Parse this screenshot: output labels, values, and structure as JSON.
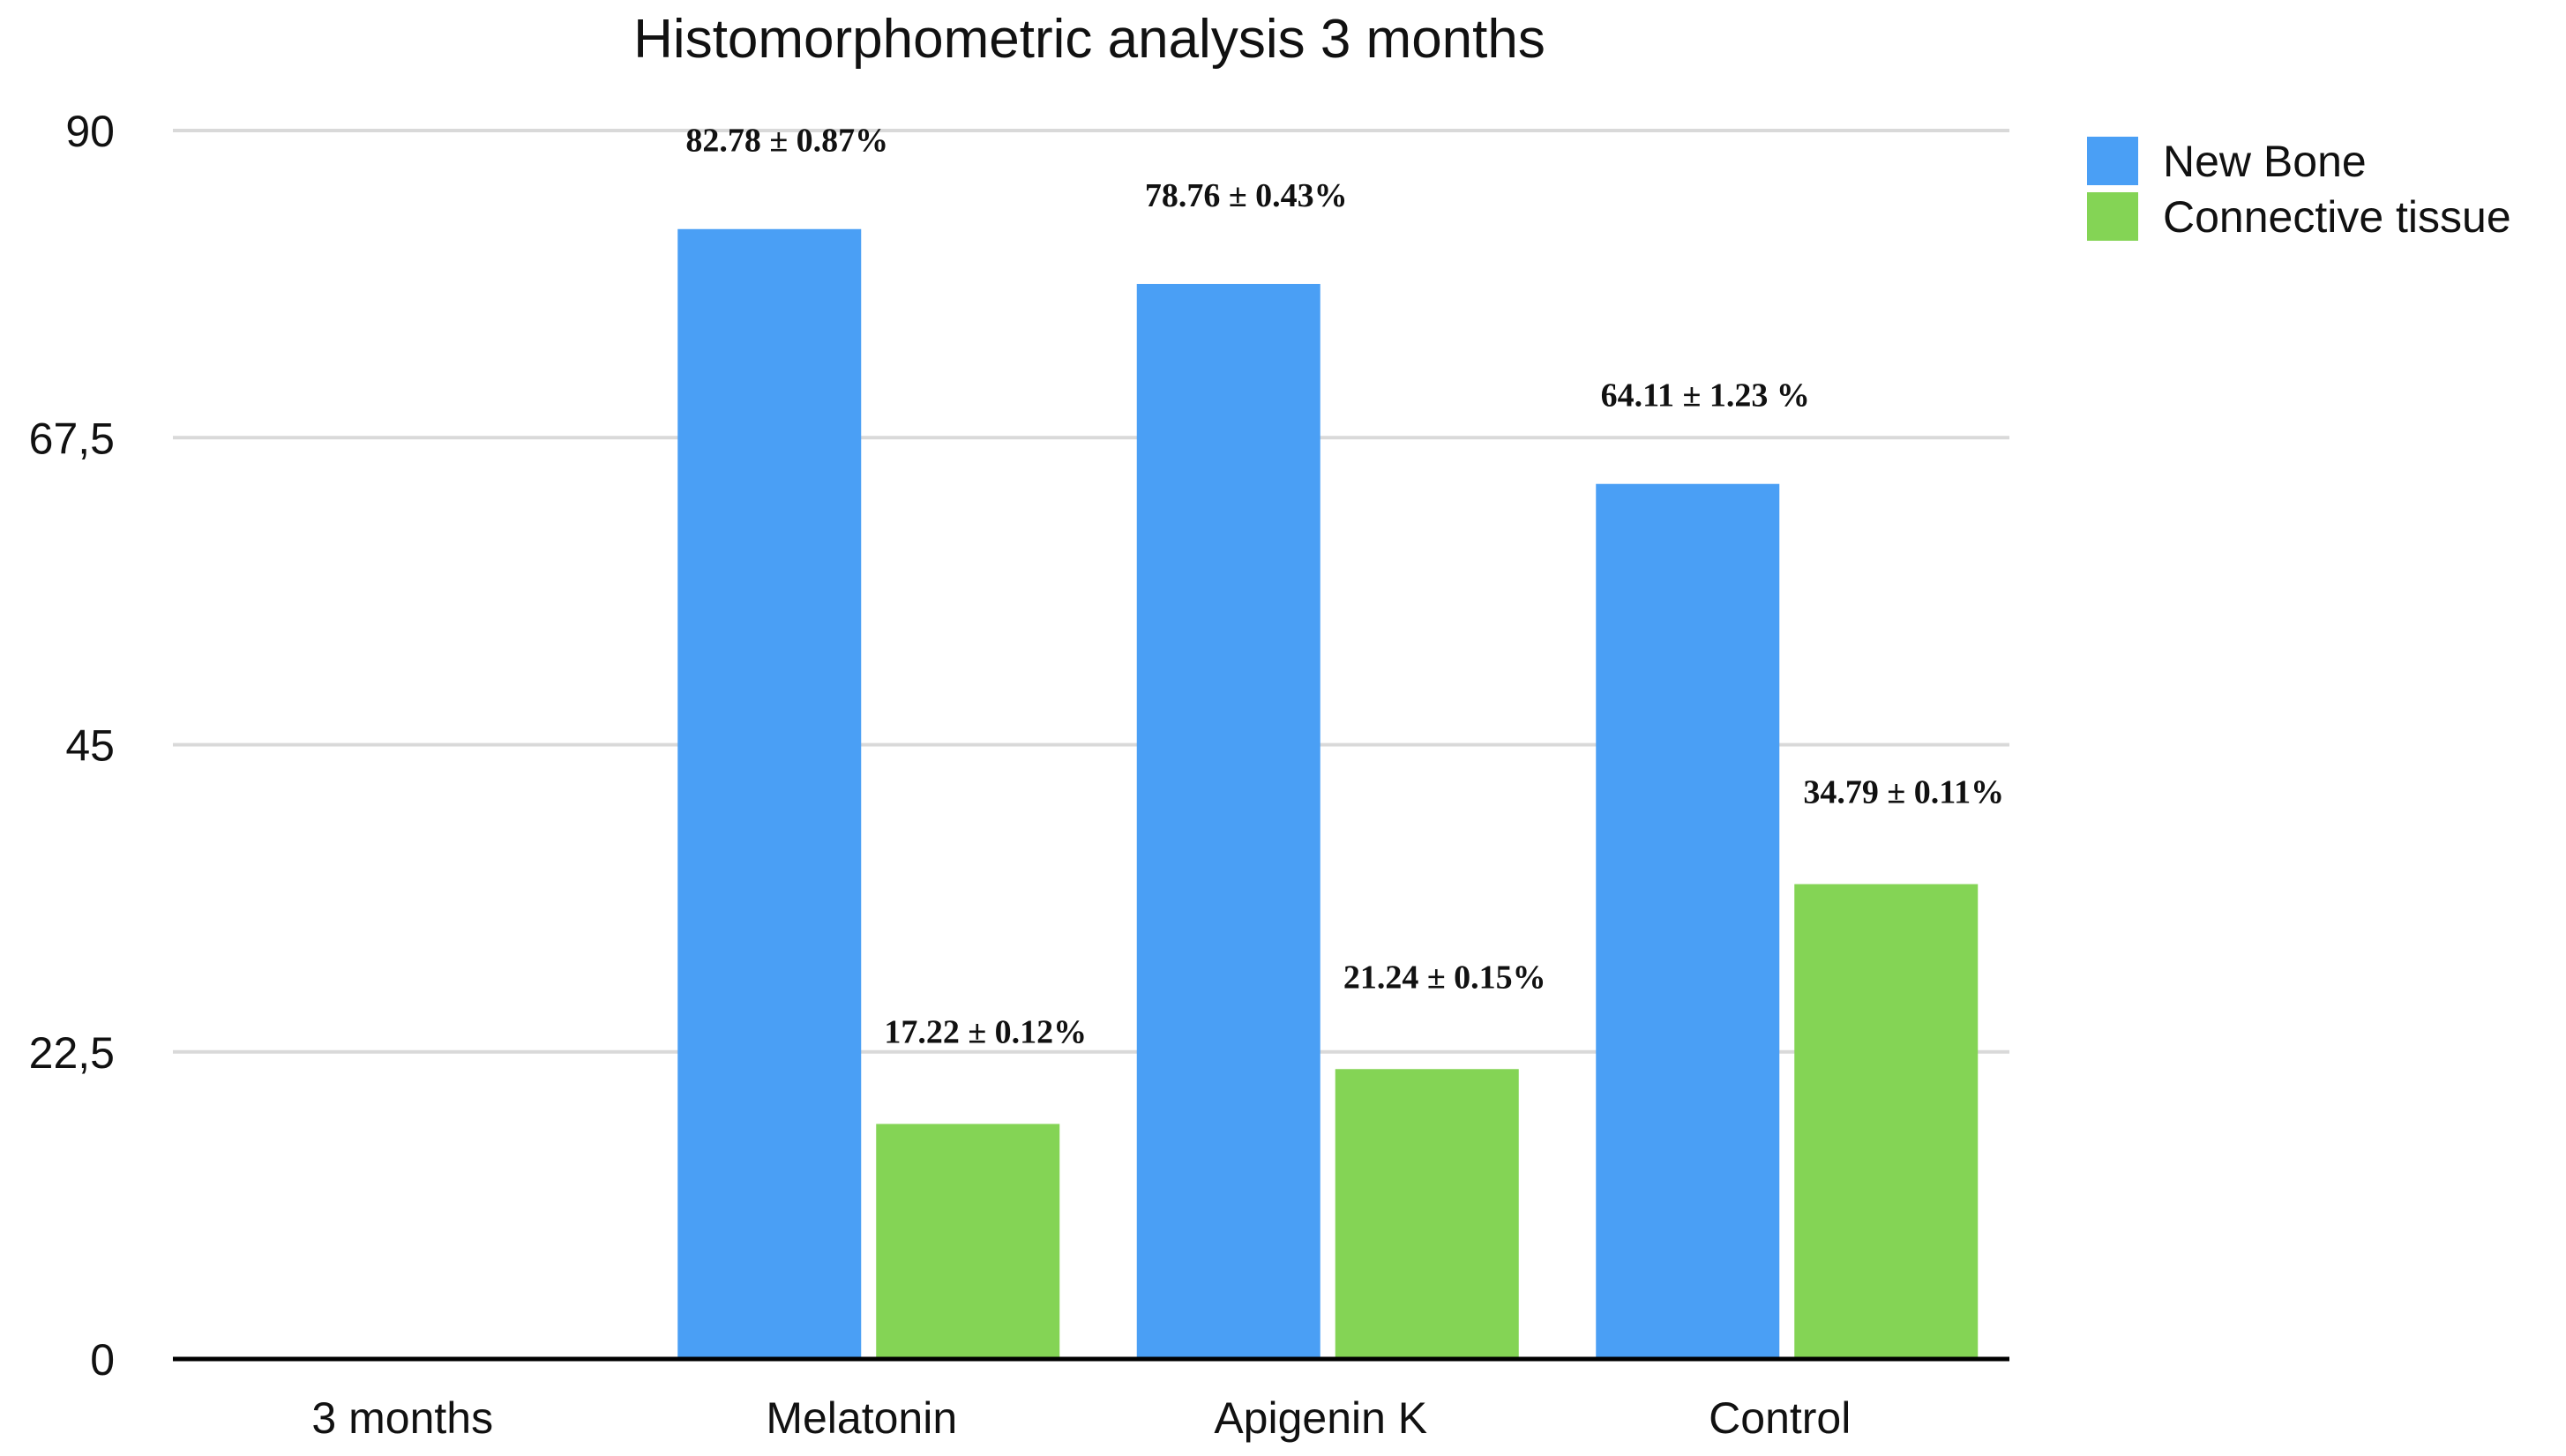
{
  "chart_data": {
    "type": "bar",
    "title": "Histomorphometric analysis 3 months",
    "xlabel": "",
    "ylabel": "",
    "ylim": [
      0,
      90
    ],
    "yticks": [
      0,
      22.5,
      45,
      67.5,
      90
    ],
    "ytick_labels": [
      "0",
      "22,5",
      "45",
      "67,5",
      "90"
    ],
    "grid": true,
    "legend_position": "top-right",
    "categories": [
      "3 months",
      "Melatonin",
      "Apigenin K",
      "Control"
    ],
    "series": [
      {
        "name": "New Bone",
        "color": "#4a9ff5",
        "values": [
          null,
          82.78,
          78.76,
          64.11
        ],
        "labels": [
          "",
          "82.78 ± 0.87%",
          "78.76 ± 0.43%",
          "64.11 ± 1.23 %"
        ]
      },
      {
        "name": "Connective tissue",
        "color": "#84d455",
        "values": [
          null,
          17.22,
          21.24,
          34.79
        ],
        "labels": [
          "",
          "17.22 ± 0.12%",
          "21.24 ± 0.15%",
          "34.79 ± 0.11%"
        ]
      }
    ]
  }
}
